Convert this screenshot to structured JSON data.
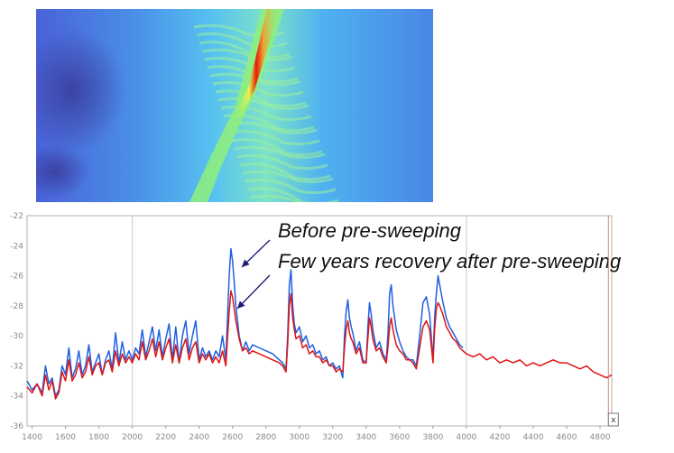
{
  "colors": {
    "before": "#1f5fe0",
    "after": "#e01414",
    "cursor": "#e08070",
    "arrow": "#1a1a7a",
    "grid": "#cfcfcf"
  },
  "map_image": {
    "description_icon": "bathymetry-heatmap-image",
    "colormap": [
      "#3a3d9e",
      "#3f6fe0",
      "#4ea7f5",
      "#55d6e8",
      "#8ff07a",
      "#e8f04a",
      "#f0a030",
      "#e02010"
    ]
  },
  "chart_data": {
    "type": "line",
    "xlim": [
      1370,
      4870
    ],
    "ylim": [
      -36,
      -22
    ],
    "x_ticks": [
      1400,
      1600,
      1800,
      2000,
      2200,
      2400,
      2600,
      2800,
      3000,
      3200,
      3400,
      3600,
      3800,
      4000,
      4200,
      4400,
      4600,
      4800
    ],
    "y_ticks": [
      -22,
      -24,
      -26,
      -28,
      -30,
      -32,
      -34,
      -36
    ],
    "annotations": [
      "Before pre-sweeping",
      "Few years recovery after pre-sweeping"
    ],
    "cursor_x": 4850,
    "cursor_label": "x",
    "series": [
      {
        "key": "before",
        "color": "#1f5fe0",
        "x": [
          1370,
          1400,
          1430,
          1460,
          1480,
          1500,
          1520,
          1540,
          1560,
          1580,
          1600,
          1620,
          1640,
          1660,
          1680,
          1700,
          1720,
          1740,
          1760,
          1780,
          1800,
          1820,
          1840,
          1860,
          1880,
          1900,
          1920,
          1940,
          1960,
          1980,
          2000,
          2020,
          2040,
          2060,
          2080,
          2100,
          2120,
          2140,
          2160,
          2180,
          2200,
          2220,
          2240,
          2260,
          2280,
          2300,
          2320,
          2340,
          2360,
          2380,
          2400,
          2420,
          2440,
          2460,
          2480,
          2500,
          2520,
          2540,
          2560,
          2580,
          2590,
          2600,
          2610,
          2620,
          2640,
          2660,
          2680,
          2700,
          2720,
          2760,
          2800,
          2840,
          2880,
          2900,
          2920,
          2930,
          2940,
          2950,
          2960,
          2970,
          2980,
          3000,
          3020,
          3040,
          3060,
          3080,
          3100,
          3120,
          3140,
          3160,
          3180,
          3200,
          3220,
          3240,
          3260,
          3270,
          3280,
          3290,
          3300,
          3310,
          3320,
          3340,
          3360,
          3380,
          3400,
          3410,
          3420,
          3430,
          3440,
          3460,
          3480,
          3500,
          3520,
          3530,
          3540,
          3550,
          3560,
          3580,
          3600,
          3620,
          3640,
          3660,
          3680,
          3700,
          3720,
          3740,
          3760,
          3780,
          3800,
          3810,
          3820,
          3830,
          3840,
          3860,
          3880,
          3900,
          3920,
          3940,
          3960,
          3980
        ],
        "y": [
          -33.0,
          -33.6,
          -33.2,
          -33.8,
          -32.0,
          -33.2,
          -32.8,
          -34.0,
          -33.6,
          -32.0,
          -32.6,
          -30.8,
          -32.8,
          -32.2,
          -31.0,
          -32.6,
          -32.0,
          -30.6,
          -32.4,
          -31.8,
          -31.2,
          -32.6,
          -31.6,
          -31.0,
          -32.2,
          -29.8,
          -31.8,
          -30.4,
          -31.6,
          -31.0,
          -31.6,
          -30.8,
          -31.2,
          -29.6,
          -31.4,
          -30.4,
          -29.4,
          -31.0,
          -29.6,
          -31.4,
          -30.2,
          -29.2,
          -31.6,
          -29.4,
          -31.8,
          -30.0,
          -29.0,
          -31.2,
          -30.0,
          -29.0,
          -31.6,
          -30.8,
          -31.4,
          -31.0,
          -31.6,
          -31.0,
          -31.4,
          -30.0,
          -31.6,
          -26.0,
          -24.2,
          -25.0,
          -26.4,
          -28.0,
          -30.0,
          -31.0,
          -30.4,
          -31.0,
          -30.6,
          -30.8,
          -31.0,
          -31.2,
          -31.6,
          -31.8,
          -32.2,
          -30.0,
          -26.6,
          -25.6,
          -28.0,
          -29.2,
          -29.8,
          -29.4,
          -30.4,
          -30.0,
          -30.8,
          -30.6,
          -31.2,
          -31.0,
          -31.6,
          -31.4,
          -32.0,
          -31.8,
          -32.2,
          -32.0,
          -32.8,
          -30.0,
          -28.4,
          -27.6,
          -28.8,
          -29.4,
          -29.8,
          -31.0,
          -30.4,
          -31.6,
          -31.8,
          -29.4,
          -27.8,
          -28.6,
          -29.6,
          -30.8,
          -30.4,
          -31.2,
          -31.6,
          -30.0,
          -27.2,
          -26.6,
          -28.0,
          -29.6,
          -30.4,
          -31.0,
          -31.4,
          -31.6,
          -31.6,
          -32.0,
          -30.0,
          -27.8,
          -27.4,
          -28.6,
          -31.6,
          -28.8,
          -27.2,
          -26.0,
          -26.6,
          -27.8,
          -28.8,
          -29.4,
          -29.8,
          -30.2,
          -30.6,
          -30.8
        ]
      },
      {
        "key": "after",
        "color": "#e01414",
        "x": [
          1370,
          1400,
          1430,
          1460,
          1480,
          1500,
          1520,
          1540,
          1560,
          1580,
          1600,
          1620,
          1640,
          1660,
          1680,
          1700,
          1720,
          1740,
          1760,
          1780,
          1800,
          1820,
          1840,
          1860,
          1880,
          1900,
          1920,
          1940,
          1960,
          1980,
          2000,
          2020,
          2040,
          2060,
          2080,
          2100,
          2120,
          2140,
          2160,
          2180,
          2200,
          2220,
          2240,
          2260,
          2280,
          2300,
          2320,
          2340,
          2360,
          2380,
          2400,
          2420,
          2440,
          2460,
          2480,
          2500,
          2520,
          2540,
          2560,
          2580,
          2590,
          2600,
          2610,
          2620,
          2640,
          2660,
          2680,
          2700,
          2720,
          2760,
          2800,
          2840,
          2880,
          2900,
          2920,
          2930,
          2940,
          2950,
          2960,
          2970,
          2980,
          3000,
          3020,
          3040,
          3060,
          3080,
          3100,
          3120,
          3140,
          3160,
          3180,
          3200,
          3220,
          3240,
          3260,
          3270,
          3280,
          3290,
          3300,
          3310,
          3320,
          3340,
          3360,
          3380,
          3400,
          3410,
          3420,
          3430,
          3440,
          3460,
          3480,
          3500,
          3520,
          3530,
          3540,
          3550,
          3560,
          3580,
          3600,
          3620,
          3640,
          3660,
          3680,
          3700,
          3720,
          3740,
          3760,
          3780,
          3800,
          3810,
          3820,
          3830,
          3840,
          3860,
          3880,
          3900,
          3920,
          3940,
          3960,
          3980,
          4000,
          4040,
          4080,
          4120,
          4160,
          4200,
          4240,
          4280,
          4320,
          4360,
          4400,
          4440,
          4480,
          4520,
          4560,
          4600,
          4640,
          4680,
          4720,
          4760,
          4800,
          4840,
          4870
        ],
        "y": [
          -33.4,
          -33.8,
          -33.2,
          -34.0,
          -32.6,
          -33.6,
          -33.0,
          -34.2,
          -33.8,
          -32.4,
          -33.0,
          -31.6,
          -33.0,
          -32.6,
          -31.8,
          -32.8,
          -32.4,
          -31.4,
          -32.6,
          -32.0,
          -31.8,
          -32.6,
          -31.8,
          -31.6,
          -32.4,
          -31.0,
          -32.0,
          -31.2,
          -31.8,
          -31.4,
          -31.8,
          -31.2,
          -31.6,
          -30.4,
          -31.6,
          -31.0,
          -30.2,
          -31.4,
          -30.4,
          -31.6,
          -30.8,
          -30.2,
          -31.8,
          -30.6,
          -31.8,
          -30.8,
          -30.2,
          -31.6,
          -30.8,
          -30.4,
          -31.8,
          -31.2,
          -31.6,
          -31.2,
          -31.8,
          -31.4,
          -31.8,
          -31.0,
          -32.0,
          -28.4,
          -27.0,
          -27.4,
          -28.2,
          -29.0,
          -30.2,
          -31.0,
          -30.8,
          -31.2,
          -31.0,
          -31.2,
          -31.4,
          -31.6,
          -31.8,
          -32.0,
          -32.4,
          -30.6,
          -28.0,
          -27.2,
          -28.8,
          -29.6,
          -30.2,
          -30.0,
          -30.8,
          -30.6,
          -31.2,
          -31.0,
          -31.4,
          -31.4,
          -31.8,
          -31.6,
          -32.0,
          -32.0,
          -32.4,
          -32.2,
          -32.4,
          -30.8,
          -29.6,
          -29.0,
          -29.8,
          -30.2,
          -30.4,
          -31.2,
          -30.8,
          -31.8,
          -31.8,
          -30.2,
          -28.8,
          -29.4,
          -30.2,
          -31.0,
          -30.8,
          -31.4,
          -31.8,
          -30.8,
          -29.4,
          -28.8,
          -29.6,
          -30.6,
          -31.0,
          -31.2,
          -31.6,
          -31.6,
          -31.8,
          -32.2,
          -30.8,
          -29.4,
          -29.0,
          -29.6,
          -31.8,
          -29.6,
          -28.2,
          -27.8,
          -28.0,
          -28.6,
          -29.4,
          -29.8,
          -30.2,
          -30.4,
          -30.8,
          -31.0,
          -31.2,
          -31.4,
          -31.2,
          -31.6,
          -31.4,
          -31.8,
          -31.6,
          -31.8,
          -31.6,
          -32.0,
          -31.8,
          -32.0,
          -31.8,
          -31.6,
          -31.8,
          -31.8,
          -32.0,
          -32.2,
          -32.0,
          -32.4,
          -32.6,
          -32.8,
          -32.6
        ]
      }
    ]
  }
}
